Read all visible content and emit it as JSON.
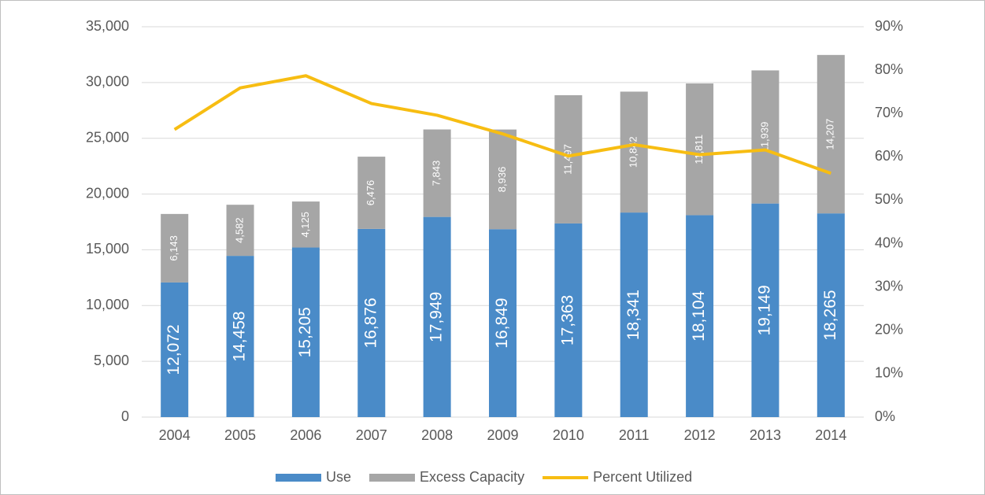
{
  "chart_data": {
    "type": "bar",
    "stacked": true,
    "categories": [
      "2004",
      "2005",
      "2006",
      "2007",
      "2008",
      "2009",
      "2010",
      "2011",
      "2012",
      "2013",
      "2014"
    ],
    "series": [
      {
        "name": "Use",
        "color": "#4a8bc8",
        "values": [
          12072,
          14458,
          15205,
          16876,
          17949,
          16849,
          17363,
          18341,
          18104,
          19149,
          18265
        ],
        "value_labels": [
          "12,072",
          "14,458",
          "15,205",
          "16,876",
          "17,949",
          "16,849",
          "17,363",
          "18,341",
          "18,104",
          "19,149",
          "18,265"
        ]
      },
      {
        "name": "Excess Capacity",
        "color": "#a6a6a6",
        "values": [
          6143,
          4582,
          4125,
          6476,
          7843,
          8936,
          11497,
          10842,
          11811,
          11939,
          14207
        ],
        "value_labels": [
          "6,143",
          "4,582",
          "4,125",
          "6,476",
          "7,843",
          "8,936",
          "11,497",
          "10,842",
          "11,811",
          "11,939",
          "14,207"
        ]
      },
      {
        "name": "Percent Utilized",
        "type": "line",
        "axis": "y2",
        "color": "#f7bd12",
        "values": [
          66.3,
          75.9,
          78.7,
          72.3,
          69.6,
          65.3,
          60.2,
          62.8,
          60.5,
          61.6,
          56.2
        ]
      }
    ],
    "ylim": [
      0,
      35000
    ],
    "yticks": [
      0,
      {
        "value": 5000,
        "label": "5,000"
      },
      {
        "value": 10000,
        "label": "10,000"
      },
      {
        "value": 15000,
        "label": "15,000"
      },
      {
        "value": 20000,
        "label": "20,000"
      },
      {
        "value": 25000,
        "label": "25,000"
      },
      {
        "value": 30000,
        "label": "30,000"
      },
      {
        "value": 35000,
        "label": "35,000"
      }
    ],
    "y2lim": [
      0,
      90
    ],
    "y2ticks": [
      {
        "value": 0,
        "label": "0%"
      },
      {
        "value": 10,
        "label": "10%"
      },
      {
        "value": 20,
        "label": "20%"
      },
      {
        "value": 30,
        "label": "30%"
      },
      {
        "value": 40,
        "label": "40%"
      },
      {
        "value": 50,
        "label": "50%"
      },
      {
        "value": 60,
        "label": "60%"
      },
      {
        "value": 70,
        "label": "70%"
      },
      {
        "value": 80,
        "label": "80%"
      },
      {
        "value": 90,
        "label": "90%"
      }
    ],
    "grid": true,
    "legend": "bottom"
  }
}
